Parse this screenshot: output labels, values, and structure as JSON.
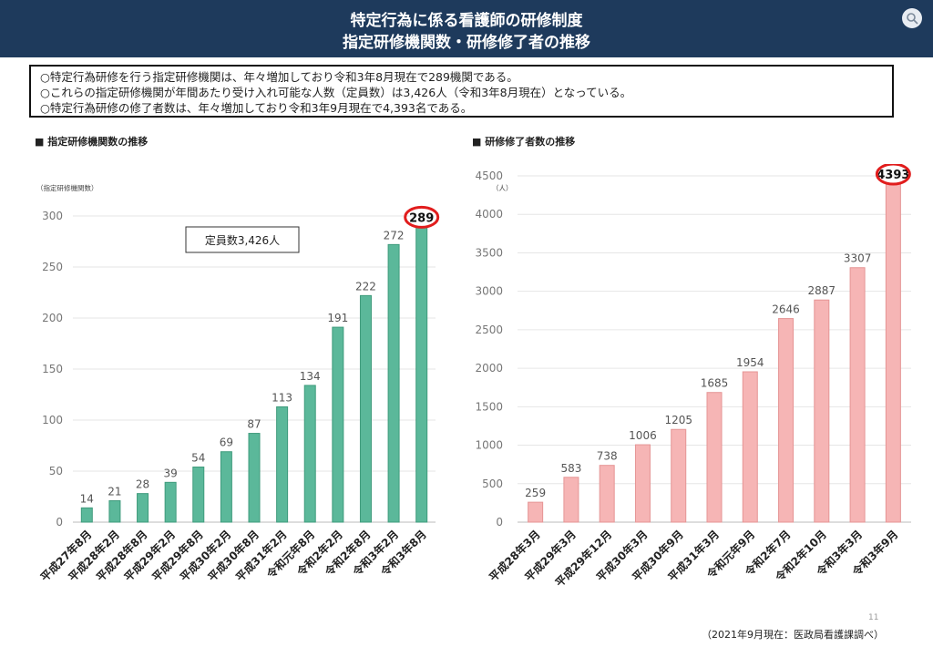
{
  "header": {
    "title_line1": "特定行為に係る看護師の研修制度",
    "title_line2": "指定研修機関数・研修修了者の推移"
  },
  "summary": [
    "○特定行為研修を行う指定研修機関は、年々増加しており令和3年8月現在で289機関である。",
    "○これらの指定研修機関が年間あたり受け入れ可能な人数（定員数）は3,426人（令和3年8月現在）となっている。",
    "○特定行為研修の修了者数は、年々増加しており令和3年9月現在で4,393名である。"
  ],
  "icons": [
    "lens-icon"
  ],
  "colors": {
    "header": "#1e3a5c",
    "bar_green": "#5bb89a",
    "bar_pink": "#f6b5b5",
    "highlight": "#e11d1d"
  },
  "chart_data": [
    {
      "type": "bar",
      "section_title": "■ 指定研修機関数の推移",
      "unit_label": "（指定研修機関数）",
      "categories": [
        "平成27年8月",
        "平成28年2月",
        "平成28年8月",
        "平成29年2月",
        "平成29年8月",
        "平成30年2月",
        "平成30年8月",
        "平成31年2月",
        "令和元年8月",
        "令和2年2月",
        "令和2年8月",
        "令和3年2月",
        "令和3年8月"
      ],
      "values": [
        14,
        21,
        28,
        39,
        54,
        69,
        87,
        113,
        134,
        191,
        222,
        272,
        289
      ],
      "ylim": [
        0,
        300
      ],
      "yticks": [
        0,
        50,
        100,
        150,
        200,
        250,
        300
      ],
      "annotation": "定員数3,426人",
      "highlight_value": "289",
      "grid": true
    },
    {
      "type": "bar",
      "section_title": "■ 研修修了者数の推移",
      "unit_label": "（人）",
      "categories": [
        "平成28年3月",
        "平成29年3月",
        "平成29年12月",
        "平成30年3月",
        "平成30年9月",
        "平成31年3月",
        "令和元年9月",
        "令和2年7月",
        "令和2年10月",
        "令和3年3月",
        "令和3年9月"
      ],
      "values": [
        259,
        583,
        738,
        1006,
        1205,
        1685,
        1954,
        2646,
        2887,
        3307,
        4393
      ],
      "ylim": [
        0,
        4500
      ],
      "yticks": [
        0,
        500,
        1000,
        1500,
        2000,
        2500,
        3000,
        3500,
        4000,
        4500
      ],
      "highlight_value": "4393",
      "grid": true
    }
  ],
  "footer": {
    "page_number": "11",
    "source": "（2021年9月現在：医政局看護課調べ）"
  }
}
